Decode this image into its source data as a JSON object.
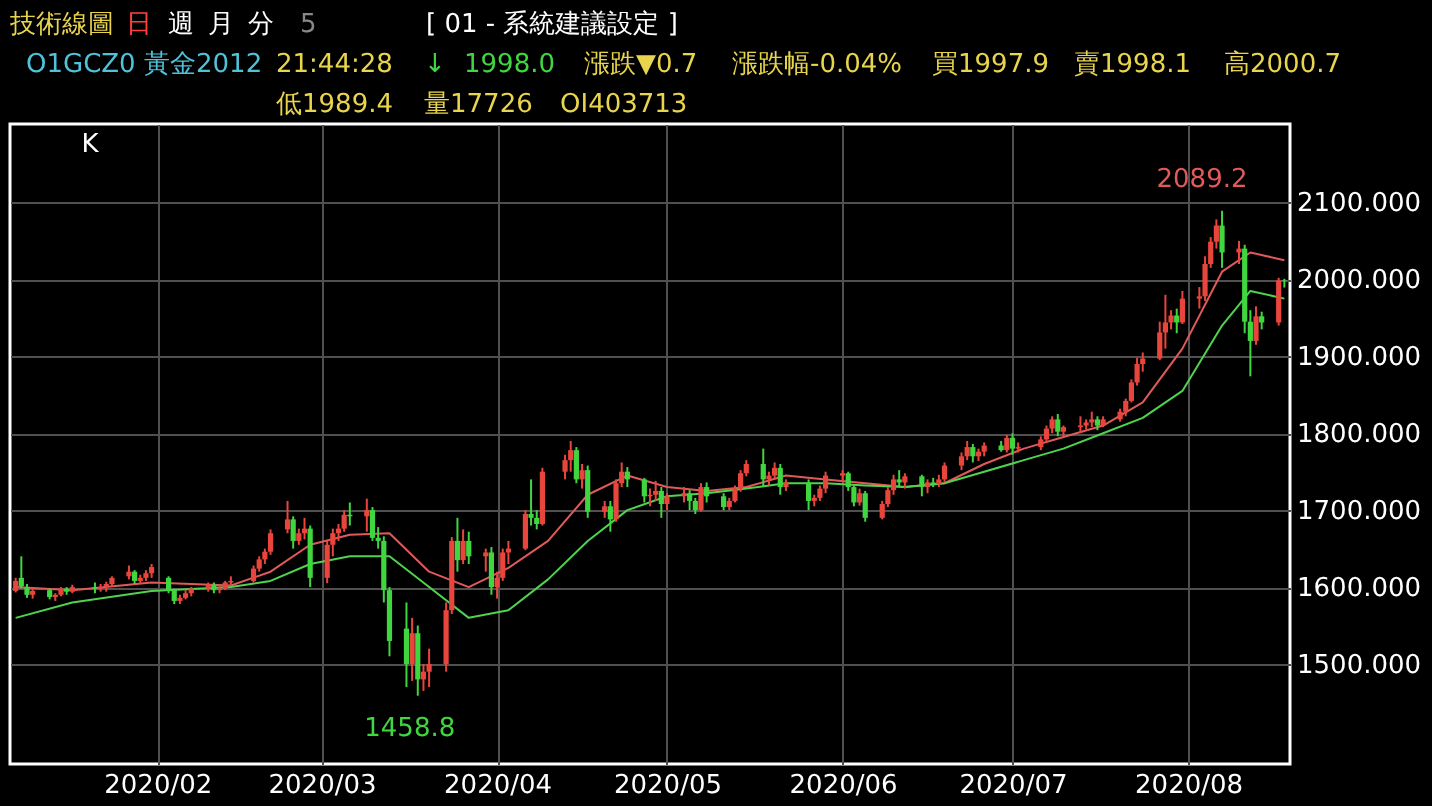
{
  "chart_data": {
    "type": "candlestick",
    "title": "技術線圖",
    "annotations": [
      "日",
      "週",
      "月",
      "分",
      "5",
      "[ 01 - 系統建議設定 ]",
      "O1GCZ0",
      "黃金2012",
      "21:44:28",
      "↓",
      "1998.0",
      "漲跌▼0.7",
      "漲跌幅-0.04%",
      "買1997.9",
      "賣1998.1",
      "高2000.7",
      "低1989.4",
      "量17726",
      "OI403713",
      "K",
      {
        "text": "2089.2",
        "x": "2020-08-07",
        "y": 2089.2
      },
      {
        "text": "1458.8",
        "x": "2020-03-18",
        "y": 1458.8
      }
    ],
    "x": [
      "2020-01-07",
      "2020-01-08",
      "2020-01-09",
      "2020-01-10",
      "2020-01-13",
      "2020-01-14",
      "2020-01-15",
      "2020-01-16",
      "2020-01-17",
      "2020-01-21",
      "2020-01-22",
      "2020-01-23",
      "2020-01-24",
      "2020-01-27",
      "2020-01-28",
      "2020-01-29",
      "2020-01-30",
      "2020-01-31",
      "2020-02-03",
      "2020-02-04",
      "2020-02-05",
      "2020-02-06",
      "2020-02-07",
      "2020-02-10",
      "2020-02-11",
      "2020-02-12",
      "2020-02-13",
      "2020-02-14",
      "2020-02-18",
      "2020-02-19",
      "2020-02-20",
      "2020-02-21",
      "2020-02-24",
      "2020-02-25",
      "2020-02-26",
      "2020-02-27",
      "2020-02-28",
      "2020-03-02",
      "2020-03-03",
      "2020-03-04",
      "2020-03-05",
      "2020-03-06",
      "2020-03-09",
      "2020-03-10",
      "2020-03-11",
      "2020-03-12",
      "2020-03-13",
      "2020-03-16",
      "2020-03-17",
      "2020-03-18",
      "2020-03-19",
      "2020-03-20",
      "2020-03-23",
      "2020-03-24",
      "2020-03-25",
      "2020-03-26",
      "2020-03-27",
      "2020-03-30",
      "2020-03-31",
      "2020-04-01",
      "2020-04-02",
      "2020-04-03",
      "2020-04-06",
      "2020-04-07",
      "2020-04-08",
      "2020-04-09",
      "2020-04-13",
      "2020-04-14",
      "2020-04-15",
      "2020-04-16",
      "2020-04-17",
      "2020-04-20",
      "2020-04-21",
      "2020-04-22",
      "2020-04-23",
      "2020-04-24",
      "2020-04-27",
      "2020-04-28",
      "2020-04-29",
      "2020-04-30",
      "2020-05-01",
      "2020-05-04",
      "2020-05-05",
      "2020-05-06",
      "2020-05-07",
      "2020-05-08",
      "2020-05-11",
      "2020-05-12",
      "2020-05-13",
      "2020-05-14",
      "2020-05-15",
      "2020-05-18",
      "2020-05-19",
      "2020-05-20",
      "2020-05-21",
      "2020-05-22",
      "2020-05-26",
      "2020-05-27",
      "2020-05-28",
      "2020-05-29",
      "2020-06-01",
      "2020-06-02",
      "2020-06-03",
      "2020-06-04",
      "2020-06-05",
      "2020-06-08",
      "2020-06-09",
      "2020-06-10",
      "2020-06-11",
      "2020-06-12",
      "2020-06-15",
      "2020-06-16",
      "2020-06-17",
      "2020-06-18",
      "2020-06-19",
      "2020-06-22",
      "2020-06-23",
      "2020-06-24",
      "2020-06-25",
      "2020-06-26",
      "2020-06-29",
      "2020-06-30",
      "2020-07-01",
      "2020-07-02",
      "2020-07-06",
      "2020-07-07",
      "2020-07-08",
      "2020-07-09",
      "2020-07-10",
      "2020-07-13",
      "2020-07-14",
      "2020-07-15",
      "2020-07-16",
      "2020-07-17",
      "2020-07-20",
      "2020-07-21",
      "2020-07-22",
      "2020-07-23",
      "2020-07-24",
      "2020-07-27",
      "2020-07-28",
      "2020-07-29",
      "2020-07-30",
      "2020-07-31",
      "2020-08-03",
      "2020-08-04",
      "2020-08-05",
      "2020-08-06",
      "2020-08-07",
      "2020-08-10",
      "2020-08-11",
      "2020-08-12",
      "2020-08-13",
      "2020-08-14",
      "2020-08-17",
      "2020-08-18"
    ],
    "ohlc": [
      [
        1595,
        1612,
        1593,
        1608
      ],
      [
        1612,
        1640,
        1598,
        1601
      ],
      [
        1600,
        1604,
        1586,
        1590
      ],
      [
        1590,
        1598,
        1585,
        1595
      ],
      [
        1596,
        1598,
        1584,
        1587
      ],
      [
        1587,
        1592,
        1582,
        1590
      ],
      [
        1590,
        1600,
        1588,
        1598
      ],
      [
        1598,
        1600,
        1590,
        1594
      ],
      [
        1594,
        1603,
        1592,
        1600
      ],
      [
        1600,
        1606,
        1592,
        1598
      ],
      [
        1598,
        1604,
        1594,
        1600
      ],
      [
        1600,
        1607,
        1594,
        1604
      ],
      [
        1604,
        1614,
        1600,
        1612
      ],
      [
        1614,
        1628,
        1610,
        1620
      ],
      [
        1620,
        1622,
        1604,
        1608
      ],
      [
        1608,
        1616,
        1604,
        1612
      ],
      [
        1612,
        1622,
        1608,
        1618
      ],
      [
        1618,
        1630,
        1612,
        1626
      ],
      [
        1612,
        1614,
        1592,
        1596
      ],
      [
        1596,
        1598,
        1578,
        1582
      ],
      [
        1582,
        1590,
        1578,
        1586
      ],
      [
        1586,
        1596,
        1584,
        1592
      ],
      [
        1592,
        1600,
        1588,
        1598
      ],
      [
        1598,
        1606,
        1594,
        1603
      ],
      [
        1603,
        1606,
        1592,
        1596
      ],
      [
        1596,
        1602,
        1592,
        1598
      ],
      [
        1598,
        1608,
        1596,
        1606
      ],
      [
        1606,
        1614,
        1602,
        1608
      ],
      [
        1608,
        1628,
        1606,
        1624
      ],
      [
        1624,
        1640,
        1620,
        1636
      ],
      [
        1636,
        1650,
        1630,
        1646
      ],
      [
        1646,
        1675,
        1642,
        1670
      ],
      [
        1675,
        1712,
        1670,
        1688
      ],
      [
        1688,
        1692,
        1650,
        1660
      ],
      [
        1660,
        1676,
        1655,
        1670
      ],
      [
        1670,
        1690,
        1662,
        1676
      ],
      [
        1676,
        1680,
        1600,
        1612
      ],
      [
        1612,
        1660,
        1605,
        1655
      ],
      [
        1655,
        1676,
        1640,
        1670
      ],
      [
        1670,
        1682,
        1660,
        1676
      ],
      [
        1676,
        1700,
        1672,
        1694
      ],
      [
        1694,
        1710,
        1680,
        1692
      ],
      [
        1692,
        1715,
        1672,
        1700
      ],
      [
        1700,
        1704,
        1660,
        1664
      ],
      [
        1664,
        1678,
        1650,
        1660
      ],
      [
        1660,
        1666,
        1580,
        1596
      ],
      [
        1596,
        1600,
        1510,
        1530
      ],
      [
        1546,
        1580,
        1470,
        1500
      ],
      [
        1500,
        1560,
        1478,
        1540
      ],
      [
        1540,
        1550,
        1458.8,
        1480
      ],
      [
        1480,
        1500,
        1465,
        1490
      ],
      [
        1490,
        1520,
        1470,
        1500
      ],
      [
        1500,
        1580,
        1490,
        1570
      ],
      [
        1570,
        1665,
        1565,
        1660
      ],
      [
        1660,
        1690,
        1620,
        1635
      ],
      [
        1635,
        1675,
        1630,
        1660
      ],
      [
        1660,
        1672,
        1630,
        1640
      ],
      [
        1640,
        1650,
        1620,
        1645
      ],
      [
        1645,
        1652,
        1590,
        1600
      ],
      [
        1600,
        1620,
        1585,
        1612
      ],
      [
        1612,
        1650,
        1608,
        1645
      ],
      [
        1645,
        1660,
        1630,
        1650
      ],
      [
        1650,
        1700,
        1648,
        1695
      ],
      [
        1695,
        1740,
        1680,
        1690
      ],
      [
        1690,
        1700,
        1675,
        1682
      ],
      [
        1682,
        1755,
        1680,
        1750
      ],
      [
        1750,
        1772,
        1740,
        1765
      ],
      [
        1765,
        1790,
        1750,
        1778
      ],
      [
        1778,
        1782,
        1735,
        1740
      ],
      [
        1740,
        1760,
        1728,
        1752
      ],
      [
        1752,
        1758,
        1690,
        1698
      ],
      [
        1698,
        1712,
        1690,
        1705
      ],
      [
        1705,
        1712,
        1672,
        1688
      ],
      [
        1688,
        1740,
        1685,
        1735
      ],
      [
        1735,
        1762,
        1730,
        1750
      ],
      [
        1750,
        1756,
        1730,
        1740
      ],
      [
        1740,
        1742,
        1710,
        1718
      ],
      [
        1718,
        1728,
        1705,
        1720
      ],
      [
        1720,
        1738,
        1712,
        1725
      ],
      [
        1725,
        1730,
        1690,
        1708
      ],
      [
        1708,
        1722,
        1700,
        1718
      ],
      [
        1718,
        1730,
        1710,
        1722
      ],
      [
        1722,
        1726,
        1700,
        1712
      ],
      [
        1712,
        1716,
        1695,
        1700
      ],
      [
        1700,
        1735,
        1698,
        1730
      ],
      [
        1730,
        1736,
        1710,
        1718
      ],
      [
        1718,
        1722,
        1700,
        1704
      ],
      [
        1704,
        1716,
        1700,
        1712
      ],
      [
        1712,
        1732,
        1710,
        1728
      ],
      [
        1728,
        1752,
        1724,
        1748
      ],
      [
        1748,
        1765,
        1744,
        1760
      ],
      [
        1760,
        1780,
        1730,
        1740
      ],
      [
        1740,
        1750,
        1732,
        1745
      ],
      [
        1745,
        1762,
        1740,
        1755
      ],
      [
        1755,
        1760,
        1720,
        1730
      ],
      [
        1730,
        1740,
        1725,
        1736
      ],
      [
        1736,
        1740,
        1700,
        1712
      ],
      [
        1712,
        1720,
        1705,
        1716
      ],
      [
        1716,
        1732,
        1712,
        1728
      ],
      [
        1728,
        1750,
        1722,
        1745
      ],
      [
        1745,
        1752,
        1736,
        1748
      ],
      [
        1748,
        1750,
        1725,
        1730
      ],
      [
        1730,
        1734,
        1705,
        1710
      ],
      [
        1710,
        1728,
        1706,
        1722
      ],
      [
        1722,
        1725,
        1685,
        1690
      ],
      [
        1690,
        1712,
        1688,
        1708
      ],
      [
        1708,
        1730,
        1704,
        1726
      ],
      [
        1726,
        1746,
        1720,
        1740
      ],
      [
        1740,
        1752,
        1730,
        1736
      ],
      [
        1736,
        1748,
        1728,
        1744
      ],
      [
        1744,
        1746,
        1718,
        1730
      ],
      [
        1730,
        1740,
        1722,
        1736
      ],
      [
        1736,
        1742,
        1730,
        1734
      ],
      [
        1734,
        1746,
        1730,
        1740
      ],
      [
        1740,
        1762,
        1736,
        1758
      ],
      [
        1758,
        1775,
        1752,
        1770
      ],
      [
        1770,
        1790,
        1765,
        1782
      ],
      [
        1782,
        1786,
        1762,
        1770
      ],
      [
        1770,
        1780,
        1764,
        1776
      ],
      [
        1776,
        1788,
        1770,
        1784
      ],
      [
        1784,
        1790,
        1776,
        1778
      ],
      [
        1778,
        1798,
        1775,
        1794
      ],
      [
        1794,
        1800,
        1772,
        1780
      ],
      [
        1780,
        1788,
        1775,
        1782
      ],
      [
        1782,
        1796,
        1778,
        1792
      ],
      [
        1792,
        1810,
        1788,
        1806
      ],
      [
        1806,
        1822,
        1800,
        1818
      ],
      [
        1818,
        1825,
        1796,
        1802
      ],
      [
        1802,
        1810,
        1796,
        1808
      ],
      [
        1808,
        1822,
        1800,
        1810
      ],
      [
        1810,
        1818,
        1805,
        1814
      ],
      [
        1814,
        1828,
        1808,
        1818
      ],
      [
        1818,
        1822,
        1804,
        1810
      ],
      [
        1810,
        1822,
        1808,
        1818
      ],
      [
        1818,
        1832,
        1815,
        1828
      ],
      [
        1828,
        1845,
        1822,
        1842
      ],
      [
        1842,
        1870,
        1840,
        1866
      ],
      [
        1866,
        1898,
        1862,
        1890
      ],
      [
        1890,
        1905,
        1880,
        1897
      ],
      [
        1897,
        1945,
        1895,
        1931
      ],
      [
        1931,
        1980,
        1910,
        1944
      ],
      [
        1944,
        1960,
        1935,
        1953
      ],
      [
        1953,
        1962,
        1930,
        1944
      ],
      [
        1944,
        1985,
        1942,
        1975
      ],
      [
        1975,
        1990,
        1962,
        1978
      ],
      [
        1978,
        2030,
        1972,
        2020
      ],
      [
        2020,
        2055,
        2015,
        2049
      ],
      [
        2049,
        2078,
        2040,
        2070
      ],
      [
        2070,
        2089.2,
        2015,
        2035
      ],
      [
        2035,
        2050,
        2020,
        2040
      ],
      [
        2040,
        2045,
        1930,
        1945
      ],
      [
        1945,
        1960,
        1874,
        1920
      ],
      [
        1920,
        1965,
        1915,
        1952
      ],
      [
        1952,
        1958,
        1935,
        1944
      ],
      [
        1944,
        2002,
        1940,
        1998.7
      ],
      [
        1998.7,
        2000.7,
        1989.4,
        1998.0
      ]
    ],
    "colors": [
      "#e8453c",
      "#3fd63f",
      "#3fd63f",
      "#e8453c",
      "#3fd63f",
      "#e8453c",
      "#e8453c",
      "#3fd63f",
      "#e8453c",
      "#3fd63f",
      "#e8453c",
      "#e8453c",
      "#e8453c",
      "#e8453c",
      "#3fd63f",
      "#e8453c",
      "#e8453c",
      "#e8453c",
      "#3fd63f",
      "#3fd63f",
      "#e8453c",
      "#e8453c",
      "#e8453c",
      "#e8453c",
      "#3fd63f",
      "#e8453c",
      "#e8453c",
      "#e8453c",
      "#e8453c",
      "#e8453c",
      "#e8453c",
      "#e8453c",
      "#e8453c",
      "#3fd63f",
      "#e8453c",
      "#e8453c",
      "#3fd63f",
      "#e8453c",
      "#e8453c",
      "#e8453c",
      "#e8453c",
      "#3fd63f",
      "#e8453c",
      "#3fd63f",
      "#3fd63f",
      "#3fd63f",
      "#3fd63f",
      "#3fd63f",
      "#e8453c",
      "#3fd63f",
      "#e8453c",
      "#e8453c",
      "#e8453c",
      "#e8453c",
      "#3fd63f",
      "#e8453c",
      "#3fd63f",
      "#e8453c",
      "#3fd63f",
      "#e8453c",
      "#e8453c",
      "#e8453c",
      "#e8453c",
      "#3fd63f",
      "#3fd63f",
      "#e8453c",
      "#e8453c",
      "#e8453c",
      "#3fd63f",
      "#e8453c",
      "#3fd63f",
      "#e8453c",
      "#3fd63f",
      "#e8453c",
      "#e8453c",
      "#3fd63f",
      "#3fd63f",
      "#e8453c",
      "#e8453c",
      "#3fd63f",
      "#e8453c",
      "#e8453c",
      "#3fd63f",
      "#3fd63f",
      "#e8453c",
      "#3fd63f",
      "#3fd63f",
      "#e8453c",
      "#e8453c",
      "#e8453c",
      "#e8453c",
      "#3fd63f",
      "#e8453c",
      "#e8453c",
      "#3fd63f",
      "#e8453c",
      "#3fd63f",
      "#e8453c",
      "#e8453c",
      "#e8453c",
      "#e8453c",
      "#3fd63f",
      "#3fd63f",
      "#e8453c",
      "#3fd63f",
      "#e8453c",
      "#e8453c",
      "#e8453c",
      "#3fd63f",
      "#e8453c",
      "#3fd63f",
      "#e8453c",
      "#3fd63f",
      "#e8453c",
      "#e8453c",
      "#e8453c",
      "#e8453c",
      "#3fd63f",
      "#e8453c",
      "#e8453c",
      "#3fd63f",
      "#e8453c",
      "#3fd63f",
      "#e8453c",
      "#e8453c",
      "#e8453c",
      "#e8453c",
      "#3fd63f",
      "#e8453c",
      "#e8453c",
      "#e8453c",
      "#e8453c",
      "#3fd63f",
      "#e8453c",
      "#e8453c",
      "#e8453c",
      "#e8453c",
      "#e8453c",
      "#e8453c",
      "#e8453c",
      "#e8453c",
      "#e8453c",
      "#3fd63f",
      "#e8453c",
      "#e8453c",
      "#e8453c",
      "#e8453c",
      "#e8453c",
      "#3fd63f",
      "#e8453c",
      "#3fd63f",
      "#3fd63f",
      "#e8453c",
      "#3fd63f",
      "#e8453c",
      "#3fd63f"
    ],
    "series": [
      {
        "type": "line",
        "color": "#e05a5a",
        "x": [
          "2020-01-07",
          "2020-01-17",
          "2020-01-31",
          "2020-02-14",
          "2020-02-21",
          "2020-02-28",
          "2020-03-06",
          "2020-03-13",
          "2020-03-20",
          "2020-03-27",
          "2020-04-03",
          "2020-04-10",
          "2020-04-17",
          "2020-04-24",
          "2020-05-01",
          "2020-05-08",
          "2020-05-15",
          "2020-05-22",
          "2020-05-29",
          "2020-06-05",
          "2020-06-12",
          "2020-06-19",
          "2020-06-26",
          "2020-07-03",
          "2020-07-10",
          "2020-07-17",
          "2020-07-24",
          "2020-07-31",
          "2020-08-07",
          "2020-08-12",
          "2020-08-18"
        ],
        "values": [
          1600,
          1596,
          1606,
          1602,
          1620,
          1655,
          1668,
          1670,
          1620,
          1600,
          1625,
          1660,
          1720,
          1745,
          1730,
          1725,
          1730,
          1745,
          1740,
          1735,
          1730,
          1735,
          1760,
          1780,
          1795,
          1810,
          1840,
          1910,
          2010,
          2035,
          2025
        ]
      },
      {
        "type": "line",
        "color": "#4fd34f",
        "x": [
          "2020-01-07",
          "2020-01-17",
          "2020-01-31",
          "2020-02-14",
          "2020-02-21",
          "2020-02-28",
          "2020-03-06",
          "2020-03-13",
          "2020-03-20",
          "2020-03-27",
          "2020-04-03",
          "2020-04-10",
          "2020-04-17",
          "2020-04-24",
          "2020-05-01",
          "2020-05-08",
          "2020-05-15",
          "2020-05-22",
          "2020-05-29",
          "2020-06-05",
          "2020-06-12",
          "2020-06-19",
          "2020-06-26",
          "2020-07-03",
          "2020-07-10",
          "2020-07-17",
          "2020-07-24",
          "2020-07-31",
          "2020-08-07",
          "2020-08-12",
          "2020-08-18"
        ],
        "values": [
          1560,
          1580,
          1595,
          1600,
          1608,
          1630,
          1640,
          1640,
          1600,
          1560,
          1570,
          1610,
          1660,
          1700,
          1718,
          1722,
          1728,
          1735,
          1735,
          1732,
          1730,
          1735,
          1750,
          1765,
          1780,
          1800,
          1820,
          1855,
          1940,
          1985,
          1975
        ]
      }
    ],
    "xlim": [
      "2020-01-06",
      "2020-08-19"
    ],
    "xticks": [
      {
        "value": "2020-02-01",
        "label": "2020/02"
      },
      {
        "value": "2020-03-01",
        "label": "2020/03"
      },
      {
        "value": "2020-04-01",
        "label": "2020/04"
      },
      {
        "value": "2020-05-01",
        "label": "2020/05"
      },
      {
        "value": "2020-06-01",
        "label": "2020/06"
      },
      {
        "value": "2020-07-01",
        "label": "2020/07"
      },
      {
        "value": "2020-08-01",
        "label": "2020/08"
      }
    ],
    "ylim": [
      1370,
      2202
    ],
    "yticks": [
      {
        "value": 1500,
        "label": "1500.000"
      },
      {
        "value": 1600,
        "label": "1600.000"
      },
      {
        "value": 1700,
        "label": "1700.000"
      },
      {
        "value": 1800,
        "label": "1800.000"
      },
      {
        "value": 1900,
        "label": "1900.000"
      },
      {
        "value": 2000,
        "label": "2000.000"
      },
      {
        "value": 2100,
        "label": "2100.000"
      }
    ],
    "grid": true
  }
}
